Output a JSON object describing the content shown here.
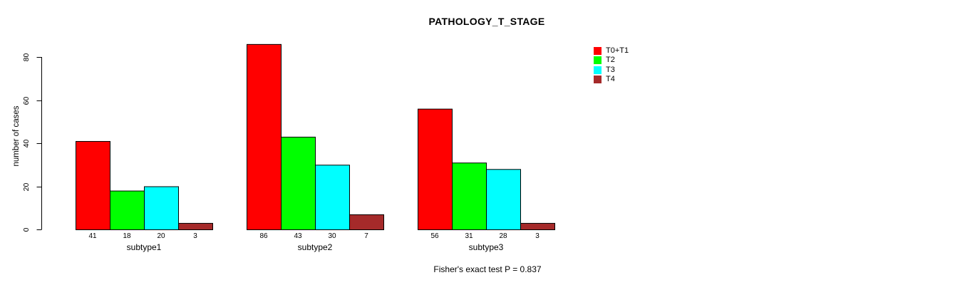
{
  "chart_data": {
    "type": "bar",
    "grouped": true,
    "title": "PATHOLOGY_T_STAGE",
    "ylabel": "number of cases",
    "xlabel": "",
    "categories": [
      "subtype1",
      "subtype2",
      "subtype3"
    ],
    "series": [
      {
        "name": "T0+T1",
        "color": "#ff0000",
        "values": [
          41,
          86,
          56
        ]
      },
      {
        "name": "T2",
        "color": "#00ff00",
        "values": [
          18,
          43,
          31
        ]
      },
      {
        "name": "T3",
        "color": "#00ffff",
        "values": [
          20,
          30,
          28
        ]
      },
      {
        "name": "T4",
        "color": "#a52a2a",
        "values": [
          3,
          7,
          3
        ]
      }
    ],
    "bar_value_labels": true,
    "bar_border_color": "#000000",
    "yticks": [
      0,
      20,
      40,
      60,
      80
    ],
    "ylim": [
      0,
      86
    ],
    "grid": false,
    "legend_position": "top-right",
    "annotation": "Fisher's exact test P = 0.837"
  }
}
